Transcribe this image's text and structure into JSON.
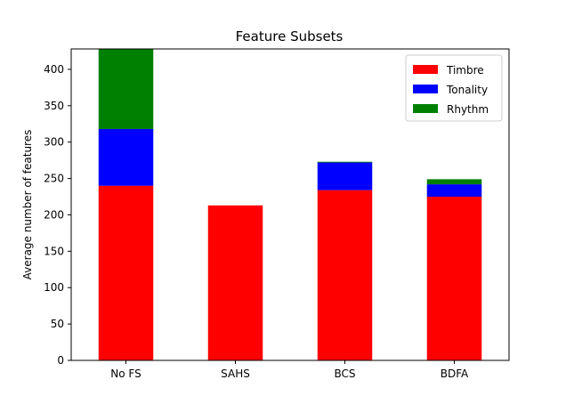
{
  "chart_data": {
    "type": "bar",
    "stacked": true,
    "title": "Feature Subsets",
    "xlabel": "",
    "ylabel": "Average number of features",
    "categories": [
      "No FS",
      "SAHS",
      "BCS",
      "BDFA"
    ],
    "series": [
      {
        "name": "Timbre",
        "color": "#ff0000",
        "values": [
          240,
          213,
          234,
          225
        ]
      },
      {
        "name": "Tonality",
        "color": "#0000ff",
        "values": [
          78,
          0,
          38,
          17
        ]
      },
      {
        "name": "Rhythm",
        "color": "#008000",
        "values": [
          110,
          0,
          1,
          7
        ]
      }
    ],
    "ylim": [
      0,
      428
    ],
    "yticks": [
      0,
      50,
      100,
      150,
      200,
      250,
      300,
      350,
      400
    ],
    "grid": false,
    "legend_position": "top-right"
  }
}
